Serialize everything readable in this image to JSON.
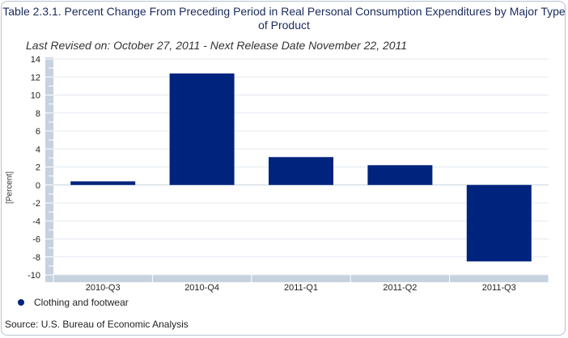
{
  "chart_data": {
    "type": "bar",
    "title": "Table 2.3.1. Percent Change From Preceding Period in Real Personal Consumption Expenditures by Major Type of Product",
    "subtitle": "Last Revised on: October 27, 2011 - Next Release Date November 22, 2011",
    "ylabel": "[Percent]",
    "xlabel": "",
    "categories": [
      "2010-Q3",
      "2010-Q4",
      "2011-Q1",
      "2011-Q2",
      "2011-Q3"
    ],
    "series": [
      {
        "name": "Clothing and footwear",
        "values": [
          0.4,
          12.4,
          3.1,
          2.2,
          -8.5
        ],
        "color": "#00247d"
      }
    ],
    "ylim": [
      -10,
      14
    ],
    "yticks": [
      14,
      12,
      10,
      8,
      6,
      4,
      2,
      0,
      -2,
      -4,
      -6,
      -8,
      -10
    ],
    "grid": true,
    "legend_position": "bottom-left",
    "source": "Source: U.S. Bureau of Economic Analysis"
  },
  "colors": {
    "bar": "#00247d",
    "axis": "#c6d2de",
    "grid": "#e4e9ef",
    "title": "#1a2a5c"
  }
}
